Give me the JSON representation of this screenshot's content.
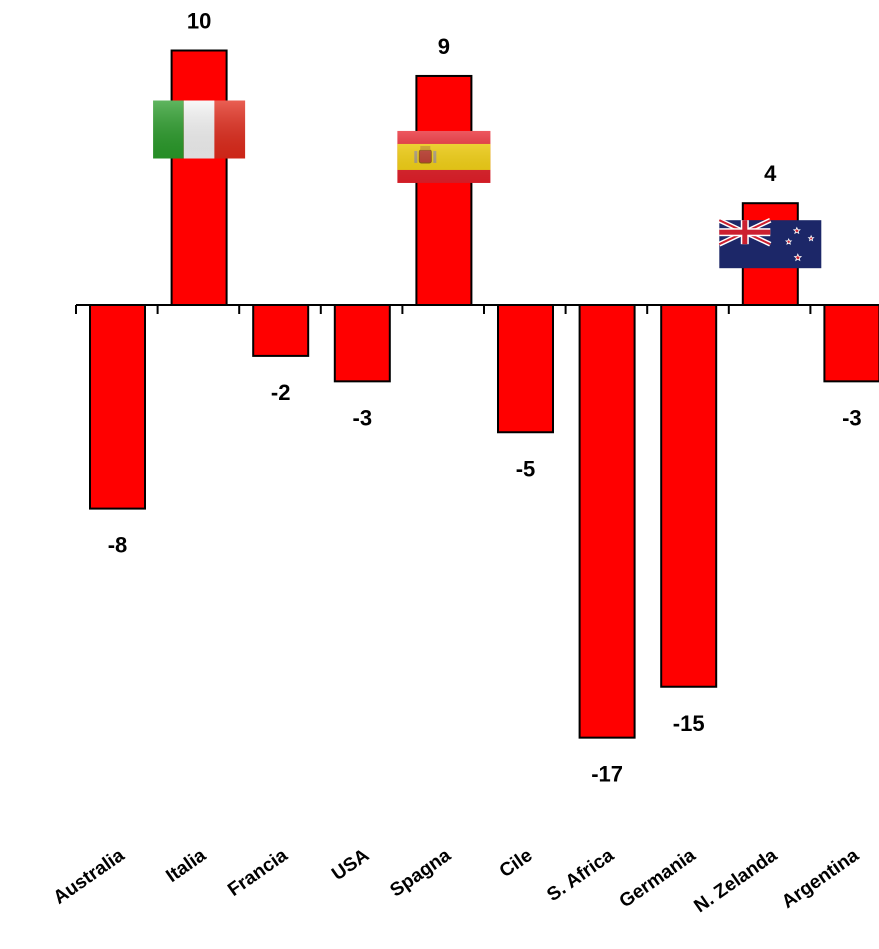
{
  "colors": {
    "bar": "#ff0000",
    "axis": "#000000"
  },
  "chart_data": {
    "type": "bar",
    "title": "",
    "xlabel": "",
    "ylabel": "",
    "categories": [
      "Australia",
      "Italia",
      "Francia",
      "USA",
      "Spagna",
      "Cile",
      "S. Africa",
      "Germania",
      "N. Zelanda",
      "Argentina"
    ],
    "values": [
      -8,
      10,
      -2,
      -3,
      9,
      -5,
      -17,
      -15,
      4,
      -3
    ],
    "ylim": [
      -17,
      10
    ],
    "grid": false,
    "legend": "none",
    "data_labels": [
      "-8",
      "10",
      "-2",
      "-3",
      "9",
      "-5",
      "-17",
      "-15",
      "4",
      "-3"
    ],
    "flags": [
      {
        "category": "Italia",
        "icon": "italy-flag-icon"
      },
      {
        "category": "Spagna",
        "icon": "spain-flag-icon"
      },
      {
        "category": "N. Zelanda",
        "icon": "new-zealand-flag-icon"
      }
    ]
  }
}
